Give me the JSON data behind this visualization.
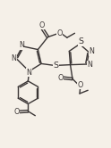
{
  "background_color": "#f5f0e8",
  "line_color": "#3a3535",
  "line_width": 1.0,
  "font_size": 5.8,
  "figsize": [
    1.24,
    1.66
  ],
  "dpi": 100,
  "xlim": [
    0,
    10
  ],
  "ylim": [
    0,
    13.5
  ]
}
